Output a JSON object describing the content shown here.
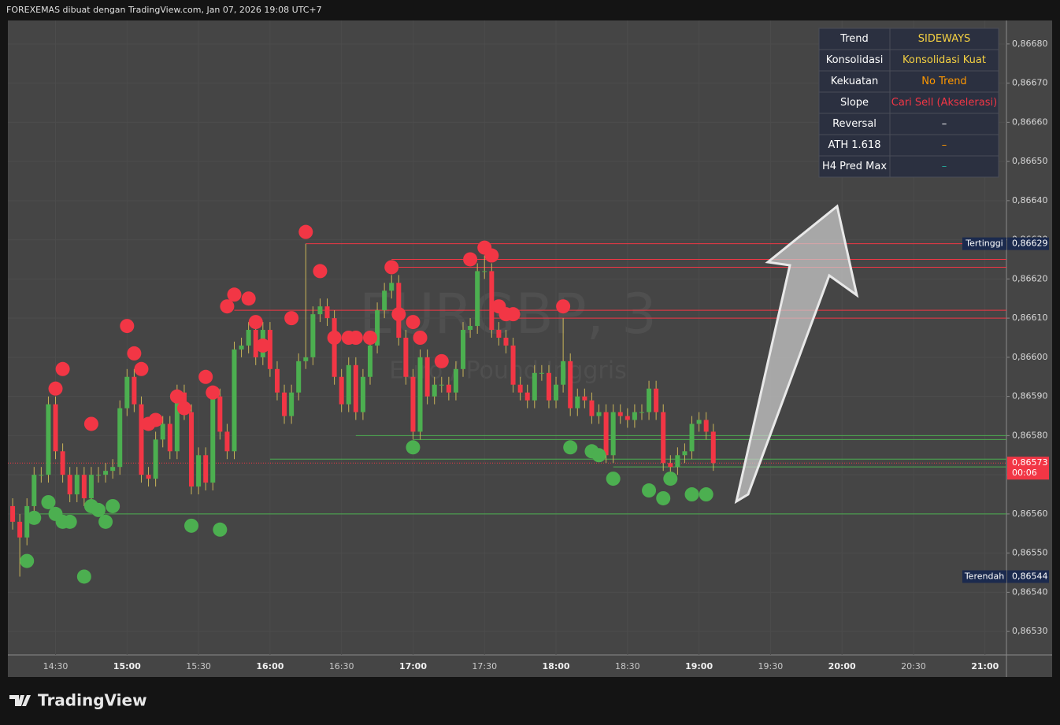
{
  "header": "FOREXEMAS dibuat dengan TradingView.com, Jan 07, 2026 19:08 UTC+7",
  "logo": "TradingView",
  "table": {
    "rows": [
      {
        "label": "Trend",
        "value": "SIDEWAYS",
        "color": "#f5d142"
      },
      {
        "label": "Konsolidasi",
        "value": "Konsolidasi Kuat",
        "color": "#f5d142"
      },
      {
        "label": "Kekuatan",
        "value": "No Trend",
        "color": "#ff9800"
      },
      {
        "label": "Slope",
        "value": "Cari Sell (Akselerasi)",
        "color": "#f23645"
      },
      {
        "label": "Reversal",
        "value": "–",
        "color": "#ffffff"
      },
      {
        "label": "ATH 1.618",
        "value": "–",
        "color": "#ff9800"
      },
      {
        "label": "H4 Pred Max",
        "value": "–",
        "color": "#26a69a"
      }
    ]
  },
  "chart_data": {
    "type": "candlestick",
    "title": "EURGBP, 3",
    "subtitle": "Euro / Pound Inggris",
    "up_color": "#4caf50",
    "down_color": "#f23645",
    "wick_color": "#c9b458",
    "grid": true,
    "xlim": [
      "14:10",
      "21:09"
    ],
    "xticks": [
      "14:30",
      "15:00",
      "15:30",
      "16:00",
      "16:30",
      "17:00",
      "17:30",
      "18:00",
      "18:30",
      "19:00",
      "19:30",
      "20:00",
      "20:30",
      "21:00"
    ],
    "ylim": [
      0.86524,
      0.86686
    ],
    "yticks": [
      {
        "value": 0.8653,
        "label": "0,86530"
      },
      {
        "value": 0.8654,
        "label": "0,86540"
      },
      {
        "value": 0.8655,
        "label": "0,86550"
      },
      {
        "value": 0.8656,
        "label": "0,86560"
      },
      {
        "value": 0.8657,
        "label": "0,86570"
      },
      {
        "value": 0.8658,
        "label": "0,86580"
      },
      {
        "value": 0.8659,
        "label": "0,86590"
      },
      {
        "value": 0.866,
        "label": "0,86600"
      },
      {
        "value": 0.8661,
        "label": "0,86610"
      },
      {
        "value": 0.8662,
        "label": "0,86620"
      },
      {
        "value": 0.8663,
        "label": "0,86630"
      },
      {
        "value": 0.8664,
        "label": "0,86640"
      },
      {
        "value": 0.8665,
        "label": "0,86650"
      },
      {
        "value": 0.8666,
        "label": "0,86660"
      },
      {
        "value": 0.8667,
        "label": "0,86670"
      },
      {
        "value": 0.8668,
        "label": "0,86680"
      }
    ],
    "x": [
      "14:12",
      "14:15",
      "14:18",
      "14:21",
      "14:24",
      "14:27",
      "14:30",
      "14:33",
      "14:36",
      "14:39",
      "14:42",
      "14:45",
      "14:48",
      "14:51",
      "14:54",
      "14:57",
      "15:00",
      "15:03",
      "15:06",
      "15:09",
      "15:12",
      "15:15",
      "15:18",
      "15:21",
      "15:24",
      "15:27",
      "15:30",
      "15:33",
      "15:36",
      "15:39",
      "15:42",
      "15:45",
      "15:48",
      "15:51",
      "15:54",
      "15:57",
      "16:00",
      "16:03",
      "16:06",
      "16:09",
      "16:12",
      "16:15",
      "16:18",
      "16:21",
      "16:24",
      "16:27",
      "16:30",
      "16:33",
      "16:36",
      "16:39",
      "16:42",
      "16:45",
      "16:48",
      "16:51",
      "16:54",
      "16:57",
      "17:00",
      "17:03",
      "17:06",
      "17:09",
      "17:12",
      "17:15",
      "17:18",
      "17:21",
      "17:24",
      "17:27",
      "17:30",
      "17:33",
      "17:36",
      "17:39",
      "17:42",
      "17:45",
      "17:48",
      "17:51",
      "17:54",
      "17:57",
      "18:00",
      "18:03",
      "18:06",
      "18:09",
      "18:12",
      "18:15",
      "18:18",
      "18:21",
      "18:24",
      "18:27",
      "18:30",
      "18:33",
      "18:36",
      "18:39",
      "18:42",
      "18:45",
      "18:48",
      "18:51",
      "18:54",
      "18:57",
      "19:00",
      "19:03",
      "19:06"
    ],
    "open": [
      0.86562,
      0.86558,
      0.86554,
      0.86562,
      0.8657,
      0.8657,
      0.86588,
      0.86576,
      0.8657,
      0.86565,
      0.8657,
      0.86564,
      0.8657,
      0.8657,
      0.86571,
      0.86572,
      0.86587,
      0.86595,
      0.86588,
      0.8657,
      0.86569,
      0.86579,
      0.86583,
      0.86576,
      0.86591,
      0.86586,
      0.86567,
      0.86575,
      0.86568,
      0.8659,
      0.86581,
      0.86576,
      0.86602,
      0.86603,
      0.86607,
      0.866,
      0.86607,
      0.86597,
      0.86591,
      0.86585,
      0.86591,
      0.86599,
      0.866,
      0.86611,
      0.86613,
      0.8661,
      0.86595,
      0.86588,
      0.86598,
      0.86586,
      0.86595,
      0.86603,
      0.86612,
      0.86617,
      0.86619,
      0.86605,
      0.86595,
      0.86581,
      0.866,
      0.8659,
      0.86593,
      0.86593,
      0.86591,
      0.86597,
      0.86607,
      0.86608,
      0.86622,
      0.86622,
      0.86607,
      0.86605,
      0.86603,
      0.86593,
      0.86591,
      0.86589,
      0.86596,
      0.86596,
      0.86589,
      0.86593,
      0.86599,
      0.86587,
      0.8659,
      0.86589,
      0.86585,
      0.86586,
      0.86575,
      0.86586,
      0.86585,
      0.86584,
      0.86586,
      0.86586,
      0.86592,
      0.86586,
      0.86573,
      0.86572,
      0.86575,
      0.86576,
      0.86583,
      0.86584,
      0.86581
    ],
    "high": [
      0.86564,
      0.8656,
      0.86564,
      0.86572,
      0.86572,
      0.8659,
      0.8659,
      0.86578,
      0.86572,
      0.86572,
      0.86572,
      0.86572,
      0.86572,
      0.86573,
      0.86574,
      0.86589,
      0.86597,
      0.86597,
      0.8659,
      0.86572,
      0.86581,
      0.86585,
      0.86585,
      0.86593,
      0.86593,
      0.86588,
      0.86577,
      0.86577,
      0.86592,
      0.86592,
      0.86583,
      0.86604,
      0.86605,
      0.86609,
      0.86609,
      0.86609,
      0.86609,
      0.86599,
      0.86593,
      0.86593,
      0.86601,
      0.86629,
      0.86613,
      0.86615,
      0.86615,
      0.86612,
      0.86597,
      0.866,
      0.866,
      0.86597,
      0.86605,
      0.86614,
      0.86619,
      0.86621,
      0.86621,
      0.86607,
      0.86597,
      0.86602,
      0.86602,
      0.86595,
      0.86595,
      0.86595,
      0.86599,
      0.86609,
      0.8661,
      0.86624,
      0.86626,
      0.86624,
      0.86609,
      0.86607,
      0.86605,
      0.86595,
      0.86593,
      0.86598,
      0.86598,
      0.86598,
      0.86595,
      0.8661,
      0.86601,
      0.86592,
      0.86592,
      0.86591,
      0.86588,
      0.86588,
      0.86588,
      0.86588,
      0.86587,
      0.86588,
      0.86588,
      0.86594,
      0.86594,
      0.86588,
      0.86575,
      0.86577,
      0.86578,
      0.86585,
      0.86586,
      0.86586,
      0.86583
    ],
    "low": [
      0.86556,
      0.86544,
      0.86552,
      0.8656,
      0.86568,
      0.86568,
      0.86574,
      0.86568,
      0.86563,
      0.86563,
      0.86562,
      0.86562,
      0.86568,
      0.86568,
      0.86569,
      0.8657,
      0.86585,
      0.86586,
      0.86568,
      0.86567,
      0.86567,
      0.86577,
      0.86574,
      0.86574,
      0.86584,
      0.86565,
      0.86565,
      0.86566,
      0.86566,
      0.86579,
      0.86574,
      0.86574,
      0.866,
      0.86601,
      0.86598,
      0.86598,
      0.86595,
      0.86589,
      0.86583,
      0.86583,
      0.86589,
      0.86597,
      0.86598,
      0.86609,
      0.86608,
      0.86593,
      0.86586,
      0.86586,
      0.86584,
      0.86584,
      0.86593,
      0.86601,
      0.8661,
      0.86615,
      0.86603,
      0.86593,
      0.86579,
      0.86579,
      0.86588,
      0.86588,
      0.86591,
      0.86589,
      0.86589,
      0.86595,
      0.86605,
      0.86606,
      0.8662,
      0.86605,
      0.86603,
      0.86601,
      0.86591,
      0.86589,
      0.86587,
      0.86587,
      0.86594,
      0.86587,
      0.86587,
      0.86591,
      0.86585,
      0.86585,
      0.86587,
      0.86583,
      0.86583,
      0.86573,
      0.86573,
      0.86583,
      0.86582,
      0.86582,
      0.86584,
      0.86584,
      0.86584,
      0.86571,
      0.8657,
      0.8657,
      0.86573,
      0.86574,
      0.86581,
      0.86579,
      0.86571
    ],
    "close": [
      0.86558,
      0.86554,
      0.86562,
      0.8657,
      0.8657,
      0.86588,
      0.86576,
      0.8657,
      0.86565,
      0.8657,
      0.86564,
      0.8657,
      0.8657,
      0.86571,
      0.86572,
      0.86587,
      0.86595,
      0.86588,
      0.8657,
      0.86569,
      0.86579,
      0.86583,
      0.86576,
      0.86591,
      0.86586,
      0.86567,
      0.86575,
      0.86568,
      0.8659,
      0.86581,
      0.86576,
      0.86602,
      0.86603,
      0.86607,
      0.866,
      0.86607,
      0.86597,
      0.86591,
      0.86585,
      0.86591,
      0.86599,
      0.866,
      0.86611,
      0.86613,
      0.8661,
      0.86595,
      0.86588,
      0.86598,
      0.86586,
      0.86595,
      0.86603,
      0.86612,
      0.86617,
      0.86619,
      0.86605,
      0.86595,
      0.86581,
      0.866,
      0.8659,
      0.86593,
      0.86593,
      0.86591,
      0.86597,
      0.86607,
      0.86608,
      0.86622,
      0.86622,
      0.86607,
      0.86605,
      0.86603,
      0.86593,
      0.86591,
      0.86589,
      0.86596,
      0.86596,
      0.86589,
      0.86593,
      0.86599,
      0.86587,
      0.8659,
      0.86589,
      0.86585,
      0.86586,
      0.86575,
      0.86586,
      0.86585,
      0.86584,
      0.86586,
      0.86586,
      0.86592,
      0.86586,
      0.86573,
      0.86572,
      0.86575,
      0.86576,
      0.86583,
      0.86584,
      0.86581,
      0.86573
    ],
    "sell_signals": {
      "color": "#f23645",
      "x": [
        "14:30",
        "14:33",
        "14:45",
        "15:00",
        "15:03",
        "15:06",
        "15:09",
        "15:12",
        "15:21",
        "15:24",
        "15:33",
        "15:36",
        "15:42",
        "15:45",
        "15:51",
        "15:54",
        "15:57",
        "16:09",
        "16:15",
        "16:21",
        "16:27",
        "16:33",
        "16:36",
        "16:42",
        "16:51",
        "16:54",
        "17:00",
        "17:03",
        "17:12",
        "17:24",
        "17:30",
        "17:33",
        "17:36",
        "17:39",
        "17:42",
        "18:03"
      ],
      "values": [
        0.86592,
        0.86597,
        0.86583,
        0.86608,
        0.86601,
        0.86597,
        0.86583,
        0.86584,
        0.8659,
        0.86587,
        0.86595,
        0.86591,
        0.86613,
        0.86616,
        0.86615,
        0.86609,
        0.86603,
        0.8661,
        0.86632,
        0.86622,
        0.86605,
        0.86605,
        0.86605,
        0.86605,
        0.86623,
        0.86611,
        0.86609,
        0.86605,
        0.86599,
        0.86625,
        0.86628,
        0.86626,
        0.86613,
        0.86611,
        0.86611,
        0.86613
      ]
    },
    "buy_signals": {
      "color": "#4caf50",
      "x": [
        "14:18",
        "14:21",
        "14:27",
        "14:30",
        "14:33",
        "14:36",
        "14:42",
        "14:45",
        "14:48",
        "14:51",
        "14:54",
        "15:27",
        "15:39",
        "17:00",
        "18:06",
        "18:15",
        "18:18",
        "18:24",
        "18:39",
        "18:45",
        "18:48",
        "18:57",
        "19:03"
      ],
      "values": [
        0.86548,
        0.86559,
        0.86563,
        0.8656,
        0.86558,
        0.86558,
        0.86544,
        0.86562,
        0.86561,
        0.86558,
        0.86562,
        0.86557,
        0.86556,
        0.86577,
        0.86577,
        0.86576,
        0.86575,
        0.86569,
        0.86566,
        0.86564,
        0.86569,
        0.86565,
        0.86565
      ]
    },
    "levels": {
      "x": [
        "16:15",
        "16:51",
        "16:54",
        "15:45",
        "17:33",
        "16:36",
        "17:00",
        "16:00",
        "18:24",
        "14:18"
      ],
      "values": [
        0.86629,
        0.86625,
        0.86623,
        0.86612,
        0.8661,
        0.8658,
        0.86579,
        0.86574,
        0.86572,
        0.8656
      ],
      "colors": [
        "#f23645",
        "#f23645",
        "#f23645",
        "#f23645",
        "#f23645",
        "#4caf50",
        "#4caf50",
        "#4caf50",
        "#4caf50",
        "#4caf50"
      ]
    },
    "price_labels": [
      {
        "label": "Tertinggi",
        "value": 0.86629,
        "value_label": "0,86629"
      },
      {
        "label": "Terendah",
        "value": 0.86544,
        "value_label": "0,86544"
      }
    ],
    "last_price": {
      "value": 0.86573,
      "value_label": "0,86573",
      "countdown": "00:06",
      "color": "#f23645"
    }
  }
}
